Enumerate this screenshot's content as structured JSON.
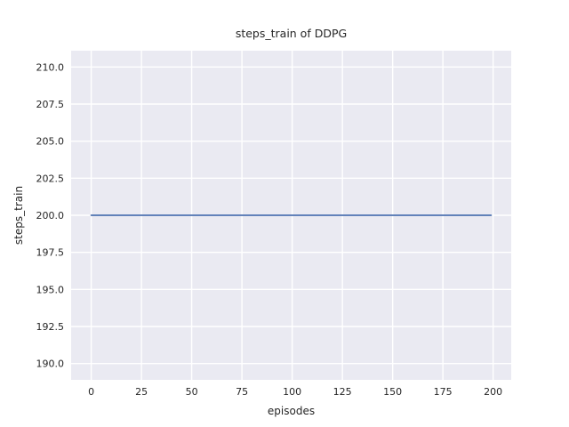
{
  "chart_data": {
    "type": "line",
    "title": "steps_train of DDPG",
    "xlabel": "episodes",
    "ylabel": "steps_train",
    "xlim": [
      -10,
      209
    ],
    "ylim": [
      188.9,
      211.1
    ],
    "xticks": [
      0,
      25,
      50,
      75,
      100,
      125,
      150,
      175,
      200
    ],
    "xtick_labels": [
      "0",
      "25",
      "50",
      "75",
      "100",
      "125",
      "150",
      "175",
      "200"
    ],
    "yticks": [
      190.0,
      192.5,
      195.0,
      197.5,
      200.0,
      202.5,
      205.0,
      207.5,
      210.0
    ],
    "ytick_labels": [
      "190.0",
      "192.5",
      "195.0",
      "197.5",
      "200.0",
      "202.5",
      "205.0",
      "207.5",
      "210.0"
    ],
    "grid": true,
    "legend": false,
    "plot_bg_color": "#eaeaf2",
    "grid_color": "#ffffff",
    "text_color": "#262626",
    "series": [
      {
        "name": "steps_train",
        "color": "#4c72b0",
        "x": [
          0,
          199
        ],
        "y": [
          200,
          200
        ],
        "note": "constant value 200 over all episodes 0-199"
      }
    ]
  }
}
